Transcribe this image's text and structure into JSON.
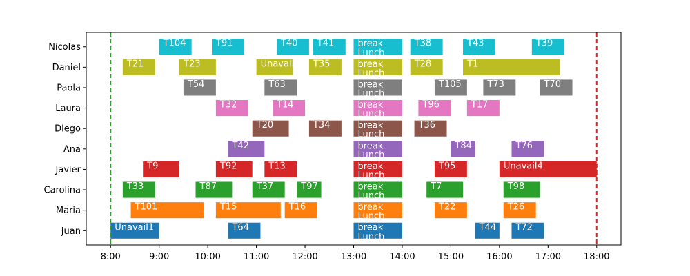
{
  "chart_data": {
    "type": "gantt",
    "x_ticks": [
      "8:00",
      "9:00",
      "10:00",
      "11:00",
      "12:00",
      "13:00",
      "14:00",
      "15:00",
      "16:00",
      "17:00",
      "18:00"
    ],
    "xlim": [
      "7:30",
      "18:30"
    ],
    "ref_lines": [
      {
        "time": "8:00",
        "color": "#2ca02c",
        "style": "dashed"
      },
      {
        "time": "18:00",
        "color": "#d62728",
        "style": "dashed"
      }
    ],
    "rows": [
      {
        "name": "Nicolas",
        "color": "#17becf",
        "tasks": [
          {
            "label": "T104",
            "start": "9:00",
            "end": "9:40"
          },
          {
            "label": "T91",
            "start": "10:05",
            "end": "10:45"
          },
          {
            "label": "T40",
            "start": "11:25",
            "end": "12:05"
          },
          {
            "label": "T41",
            "start": "12:10",
            "end": "12:50"
          },
          {
            "label": "Lunch break",
            "start": "13:00",
            "end": "14:00"
          },
          {
            "label": "T38",
            "start": "14:10",
            "end": "14:50"
          },
          {
            "label": "T43",
            "start": "15:15",
            "end": "15:55"
          },
          {
            "label": "T39",
            "start": "16:40",
            "end": "17:20"
          }
        ]
      },
      {
        "name": "Daniel",
        "color": "#bcbd22",
        "tasks": [
          {
            "label": "T21",
            "start": "8:15",
            "end": "8:55"
          },
          {
            "label": "T23",
            "start": "9:25",
            "end": "10:10"
          },
          {
            "label": "Unavail",
            "start": "11:00",
            "end": "11:45"
          },
          {
            "label": "T35",
            "start": "12:05",
            "end": "12:45"
          },
          {
            "label": "Lunch break",
            "start": "13:00",
            "end": "14:00"
          },
          {
            "label": "T28",
            "start": "14:10",
            "end": "14:50"
          },
          {
            "label": "T1",
            "start": "15:15",
            "end": "17:15"
          }
        ]
      },
      {
        "name": "Paola",
        "color": "#7f7f7f",
        "tasks": [
          {
            "label": "T54",
            "start": "9:30",
            "end": "10:10"
          },
          {
            "label": "T63",
            "start": "11:10",
            "end": "11:50"
          },
          {
            "label": "Lunch break",
            "start": "13:00",
            "end": "14:00"
          },
          {
            "label": "T105",
            "start": "14:40",
            "end": "15:20"
          },
          {
            "label": "T73",
            "start": "15:40",
            "end": "16:20"
          },
          {
            "label": "T70",
            "start": "16:50",
            "end": "17:30"
          }
        ]
      },
      {
        "name": "Laura",
        "color": "#e377c2",
        "tasks": [
          {
            "label": "T32",
            "start": "10:10",
            "end": "10:50"
          },
          {
            "label": "T14",
            "start": "11:20",
            "end": "12:00"
          },
          {
            "label": "Lunch break",
            "start": "13:00",
            "end": "14:00"
          },
          {
            "label": "T96",
            "start": "14:20",
            "end": "15:00"
          },
          {
            "label": "T17",
            "start": "15:20",
            "end": "16:00"
          }
        ]
      },
      {
        "name": "Diego",
        "color": "#8c564b",
        "tasks": [
          {
            "label": "T20",
            "start": "10:55",
            "end": "11:40"
          },
          {
            "label": "T34",
            "start": "12:05",
            "end": "12:45"
          },
          {
            "label": "Lunch break",
            "start": "13:00",
            "end": "14:00"
          },
          {
            "label": "T36",
            "start": "14:15",
            "end": "14:55"
          }
        ]
      },
      {
        "name": "Ana",
        "color": "#9467bd",
        "tasks": [
          {
            "label": "T42",
            "start": "10:25",
            "end": "11:10"
          },
          {
            "label": "Lunch break",
            "start": "13:00",
            "end": "14:00"
          },
          {
            "label": "T84",
            "start": "15:00",
            "end": "15:30"
          },
          {
            "label": "T76",
            "start": "16:15",
            "end": "16:55"
          }
        ]
      },
      {
        "name": "Javier",
        "color": "#d62728",
        "tasks": [
          {
            "label": "T9",
            "start": "8:40",
            "end": "9:25"
          },
          {
            "label": "T92",
            "start": "10:10",
            "end": "10:55"
          },
          {
            "label": "T13",
            "start": "11:10",
            "end": "11:50"
          },
          {
            "label": "Lunch break",
            "start": "13:00",
            "end": "14:00"
          },
          {
            "label": "T95",
            "start": "14:40",
            "end": "15:20"
          },
          {
            "label": "Unavail4",
            "start": "16:00",
            "end": "18:00"
          }
        ]
      },
      {
        "name": "Carolina",
        "color": "#2ca02c",
        "tasks": [
          {
            "label": "T33",
            "start": "8:15",
            "end": "8:55"
          },
          {
            "label": "T87",
            "start": "9:45",
            "end": "10:30"
          },
          {
            "label": "T37",
            "start": "10:55",
            "end": "11:35"
          },
          {
            "label": "T97",
            "start": "11:50",
            "end": "12:20"
          },
          {
            "label": "Lunch break",
            "start": "13:00",
            "end": "14:00"
          },
          {
            "label": "T7",
            "start": "14:30",
            "end": "15:15"
          },
          {
            "label": "T98",
            "start": "16:05",
            "end": "16:50"
          }
        ]
      },
      {
        "name": "Maria",
        "color": "#ff7f0e",
        "tasks": [
          {
            "label": "T101",
            "start": "8:25",
            "end": "9:55"
          },
          {
            "label": "T15",
            "start": "10:10",
            "end": "11:30"
          },
          {
            "label": "T16",
            "start": "11:35",
            "end": "12:15"
          },
          {
            "label": "Lunch break",
            "start": "13:00",
            "end": "14:00"
          },
          {
            "label": "T22",
            "start": "14:40",
            "end": "15:20"
          },
          {
            "label": "T26",
            "start": "16:05",
            "end": "16:45"
          }
        ]
      },
      {
        "name": "Juan",
        "color": "#1f77b4",
        "tasks": [
          {
            "label": "Unavail1",
            "start": "8:00",
            "end": "9:00"
          },
          {
            "label": "T64",
            "start": "10:25",
            "end": "11:05"
          },
          {
            "label": "Lunch break",
            "start": "13:00",
            "end": "14:00"
          },
          {
            "label": "T44",
            "start": "15:30",
            "end": "16:00"
          },
          {
            "label": "T72",
            "start": "16:15",
            "end": "16:55"
          }
        ]
      }
    ]
  }
}
